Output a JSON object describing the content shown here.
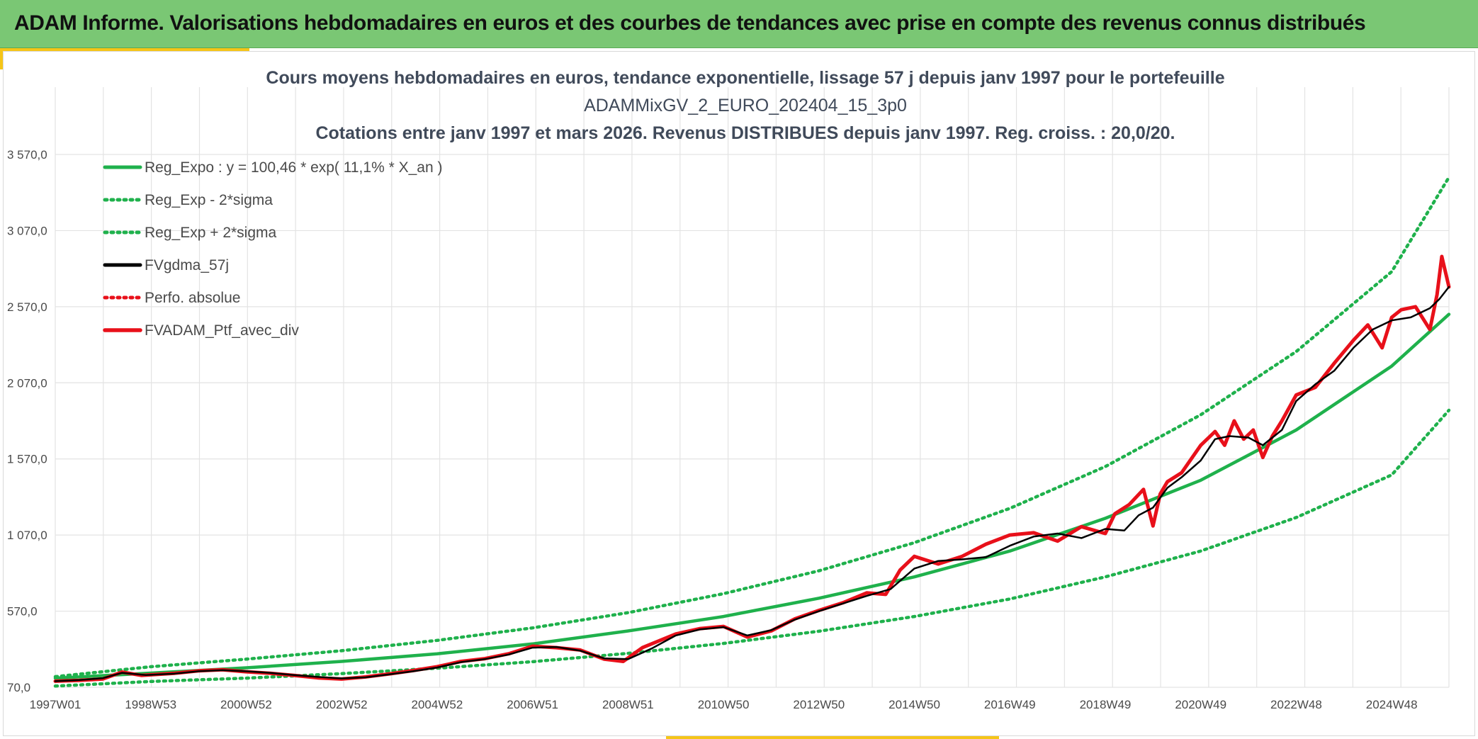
{
  "header": {
    "title": "ADAM Informe. Valorisations hebdomadaires en euros et des courbes de tendances avec prise en compte des revenus connus distribués"
  },
  "colors": {
    "header_bg": "#7ac774",
    "accent": "#f5c518",
    "reg_expo": "#1fb14c",
    "sigma": "#1fb14c",
    "fvgdma": "#000000",
    "perfo": "#e8101a",
    "fvadam": "#e8101a",
    "grid": "#e3e3e3"
  },
  "chart_data": {
    "type": "line",
    "title_lines": [
      "Cours moyens hebdomadaires en euros, tendance exponentielle, lissage 57 j depuis janv 1997 pour le portefeuille",
      "ADAMMixGV_2_EURO_202404_15_3p0",
      "Cotations entre janv 1997 et mars 2026. Revenus DISTRIBUES depuis janv 1997. Reg. croiss. : 20,0/20."
    ],
    "x_tick_labels": [
      "1997W01",
      "1998W53",
      "2000W52",
      "2002W52",
      "2004W52",
      "2006W51",
      "2008W51",
      "2010W50",
      "2012W50",
      "2014W50",
      "2016W49",
      "2018W49",
      "2020W49",
      "2022W48",
      "2024W48"
    ],
    "x_tick_years": [
      1997.0,
      1999.0,
      2001.0,
      2003.0,
      2005.0,
      2007.0,
      2009.0,
      2011.0,
      2013.0,
      2015.0,
      2017.0,
      2019.0,
      2021.0,
      2023.0,
      2025.0
    ],
    "xlim": [
      1997.0,
      2026.2
    ],
    "ylim": [
      70,
      3570
    ],
    "y_ticks": [
      70,
      570,
      1070,
      1570,
      2070,
      2570,
      3070,
      3570
    ],
    "y_tick_labels": [
      "70,0",
      "570,0",
      "1 070,0",
      "1 570,0",
      "2 070,0",
      "2 570,0",
      "3 070,0",
      "3 570,0"
    ],
    "grid": true,
    "legend_position": "top-left",
    "series": [
      {
        "name": "Reg_Expo : y = 100,46 * exp( 11,1% *  X_an )",
        "style": "solid",
        "color": "#1fb14c",
        "x": [
          1997,
          1999,
          2001,
          2003,
          2005,
          2007,
          2009,
          2011,
          2013,
          2015,
          2017,
          2019,
          2021,
          2023,
          2025,
          2026.2
        ],
        "y": [
          130,
          163,
          198,
          240,
          290,
          355,
          440,
          535,
          655,
          795,
          965,
          1180,
          1430,
          1760,
          2180,
          2520
        ]
      },
      {
        "name": "Reg_Exp - 2*sigma",
        "style": "dotted",
        "color": "#1fb14c",
        "x": [
          1997,
          1999,
          2001,
          2003,
          2005,
          2007,
          2009,
          2011,
          2013,
          2015,
          2017,
          2019,
          2021,
          2023,
          2025,
          2026.2
        ],
        "y": [
          78,
          108,
          130,
          160,
          195,
          238,
          293,
          358,
          438,
          535,
          650,
          795,
          965,
          1185,
          1465,
          1890
        ]
      },
      {
        "name": "Reg_Exp + 2*sigma",
        "style": "dotted",
        "color": "#1fb14c",
        "x": [
          1997,
          1999,
          2001,
          2003,
          2005,
          2007,
          2009,
          2011,
          2013,
          2015,
          2017,
          2019,
          2021,
          2023,
          2025,
          2026.2
        ],
        "y": [
          140,
          205,
          255,
          310,
          378,
          460,
          560,
          685,
          835,
          1020,
          1245,
          1520,
          1860,
          2275,
          2800,
          3420
        ]
      },
      {
        "name": "FVgdma_57j",
        "style": "solid",
        "color": "#000000",
        "x": [
          1997.0,
          1997.5,
          1998.0,
          1998.4,
          1998.9,
          1999.5,
          2000.0,
          2000.5,
          2001.0,
          2001.5,
          2002.0,
          2002.5,
          2003.0,
          2003.5,
          2004.0,
          2004.5,
          2005.0,
          2005.5,
          2006.0,
          2006.5,
          2007.0,
          2007.5,
          2008.0,
          2008.5,
          2009.0,
          2009.5,
          2010.0,
          2010.5,
          2011.0,
          2011.5,
          2012.0,
          2012.5,
          2013.0,
          2013.5,
          2014.0,
          2014.5,
          2015.0,
          2015.5,
          2016.0,
          2016.5,
          2017.0,
          2017.5,
          2018.0,
          2018.5,
          2019.0,
          2019.4,
          2019.7,
          2020.0,
          2020.3,
          2020.6,
          2021.0,
          2021.3,
          2021.6,
          2022.0,
          2022.3,
          2022.7,
          2023.0,
          2023.4,
          2023.8,
          2024.2,
          2024.6,
          2025.0,
          2025.4,
          2025.8,
          2026.0,
          2026.2
        ],
        "y": [
          110,
          118,
          130,
          165,
          150,
          160,
          175,
          182,
          175,
          165,
          150,
          138,
          128,
          135,
          155,
          175,
          200,
          235,
          255,
          285,
          330,
          335,
          310,
          260,
          255,
          325,
          410,
          450,
          465,
          410,
          445,
          515,
          570,
          620,
          670,
          715,
          850,
          900,
          910,
          925,
          1000,
          1060,
          1080,
          1050,
          1110,
          1100,
          1200,
          1250,
          1380,
          1450,
          1560,
          1700,
          1720,
          1710,
          1660,
          1760,
          1950,
          2060,
          2150,
          2300,
          2420,
          2480,
          2500,
          2560,
          2620,
          2700
        ]
      },
      {
        "name": "Perfo. absolue",
        "style": "dotted",
        "color": "#e8101a",
        "x": [],
        "y": []
      },
      {
        "name": "FVADAM_Ptf_avec_div",
        "style": "solid-thick",
        "color": "#e8101a",
        "x": [
          1997.0,
          1997.5,
          1998.0,
          1998.4,
          1998.8,
          1999.5,
          2000.0,
          2000.5,
          2001.0,
          2001.5,
          2002.0,
          2002.5,
          2003.0,
          2003.5,
          2004.0,
          2004.5,
          2005.0,
          2005.5,
          2006.0,
          2006.5,
          2007.0,
          2007.5,
          2008.0,
          2008.5,
          2008.9,
          2009.3,
          2010.0,
          2010.5,
          2011.0,
          2011.5,
          2012.0,
          2012.5,
          2013.0,
          2013.5,
          2014.0,
          2014.4,
          2014.7,
          2015.0,
          2015.5,
          2016.0,
          2016.5,
          2017.0,
          2017.5,
          2018.0,
          2018.5,
          2019.0,
          2019.2,
          2019.5,
          2019.8,
          2020.0,
          2020.15,
          2020.3,
          2020.6,
          2021.0,
          2021.3,
          2021.5,
          2021.7,
          2021.9,
          2022.1,
          2022.3,
          2022.5,
          2022.7,
          2023.0,
          2023.4,
          2023.8,
          2024.2,
          2024.5,
          2024.8,
          2025.0,
          2025.2,
          2025.5,
          2025.8,
          2025.95,
          2026.05,
          2026.2
        ],
        "y": [
          110,
          115,
          125,
          170,
          148,
          162,
          178,
          185,
          172,
          162,
          148,
          132,
          124,
          138,
          158,
          180,
          205,
          240,
          258,
          290,
          340,
          330,
          315,
          255,
          240,
          330,
          420,
          455,
          470,
          400,
          440,
          520,
          575,
          625,
          690,
          680,
          840,
          930,
          880,
          930,
          1010,
          1070,
          1085,
          1030,
          1125,
          1080,
          1210,
          1270,
          1370,
          1130,
          1340,
          1420,
          1480,
          1660,
          1750,
          1660,
          1820,
          1700,
          1760,
          1580,
          1720,
          1820,
          1990,
          2040,
          2200,
          2350,
          2450,
          2300,
          2500,
          2550,
          2570,
          2420,
          2650,
          2900,
          2700
        ]
      }
    ]
  }
}
